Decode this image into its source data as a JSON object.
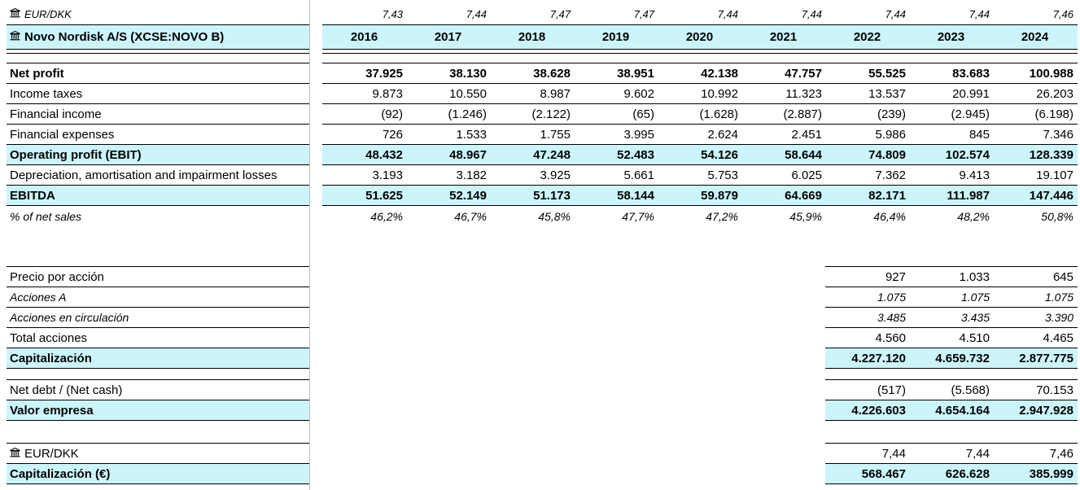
{
  "fx_top": {
    "label": "EUR/DKK",
    "values": [
      "7,43",
      "7,44",
      "7,47",
      "7,47",
      "7,44",
      "7,44",
      "7,44",
      "7,44",
      "7,46"
    ]
  },
  "header": {
    "company": "Novo Nordisk A/S (XCSE:NOVO B)",
    "years": [
      "2016",
      "2017",
      "2018",
      "2019",
      "2020",
      "2021",
      "2022",
      "2023",
      "2024"
    ]
  },
  "pl": [
    {
      "label": "Net profit",
      "style": "bold",
      "values": [
        "37.925",
        "38.130",
        "38.628",
        "38.951",
        "42.138",
        "47.757",
        "55.525",
        "83.683",
        "100.988"
      ]
    },
    {
      "label": "Income taxes",
      "style": "std",
      "values": [
        "9.873",
        "10.550",
        "8.987",
        "9.602",
        "10.992",
        "11.323",
        "13.537",
        "20.991",
        "26.203"
      ]
    },
    {
      "label": "Financial income",
      "style": "std",
      "values": [
        "(92)",
        "(1.246)",
        "(2.122)",
        "(65)",
        "(1.628)",
        "(2.887)",
        "(239)",
        "(2.945)",
        "(6.198)"
      ]
    },
    {
      "label": "Financial expenses",
      "style": "std",
      "values": [
        "726",
        "1.533",
        "1.755",
        "3.995",
        "2.624",
        "2.451",
        "5.986",
        "845",
        "7.346"
      ]
    },
    {
      "label": "Operating profit (EBIT)",
      "style": "hl",
      "values": [
        "48.432",
        "48.967",
        "47.248",
        "52.483",
        "54.126",
        "58.644",
        "74.809",
        "102.574",
        "128.339"
      ]
    },
    {
      "label": "Depreciation, amortisation and impairment losses",
      "style": "std",
      "values": [
        "3.193",
        "3.182",
        "3.925",
        "5.661",
        "5.753",
        "6.025",
        "7.362",
        "9.413",
        "19.107"
      ]
    },
    {
      "label": "EBITDA",
      "style": "hl",
      "values": [
        "51.625",
        "52.149",
        "51.173",
        "58.144",
        "59.879",
        "64.669",
        "82.171",
        "111.987",
        "147.446"
      ]
    },
    {
      "label": "% of net sales",
      "style": "ital",
      "values": [
        "46,2%",
        "46,7%",
        "45,8%",
        "47,7%",
        "47,2%",
        "45,9%",
        "46,4%",
        "48,2%",
        "50,8%"
      ]
    }
  ],
  "valuation": [
    {
      "label": "Precio por acción",
      "style": "std",
      "values": [
        "927",
        "1.033",
        "645"
      ]
    },
    {
      "label": "Acciones A",
      "style": "ital",
      "values": [
        "1.075",
        "1.075",
        "1.075"
      ]
    },
    {
      "label": "Acciones en circulación",
      "style": "ital",
      "values": [
        "3.485",
        "3.435",
        "3.390"
      ]
    },
    {
      "label": "Total acciones",
      "style": "std",
      "values": [
        "4.560",
        "4.510",
        "4.465"
      ]
    },
    {
      "label": "Capitalización",
      "style": "hl",
      "values": [
        "4.227.120",
        "4.659.732",
        "2.877.775"
      ]
    },
    {
      "label": "Net debt / (Net cash)",
      "style": "std",
      "values": [
        "(517)",
        "(5.568)",
        "70.153"
      ]
    },
    {
      "label": "Valor empresa",
      "style": "hl",
      "values": [
        "4.226.603",
        "4.654.164",
        "2.947.928"
      ]
    },
    {
      "label": "EUR/DKK",
      "style": "fxstd",
      "values": [
        "7,44",
        "7,44",
        "7,46"
      ]
    },
    {
      "label": "Capitalización (€)",
      "style": "hl",
      "values": [
        "568.467",
        "626.628",
        "385.999"
      ]
    }
  ]
}
